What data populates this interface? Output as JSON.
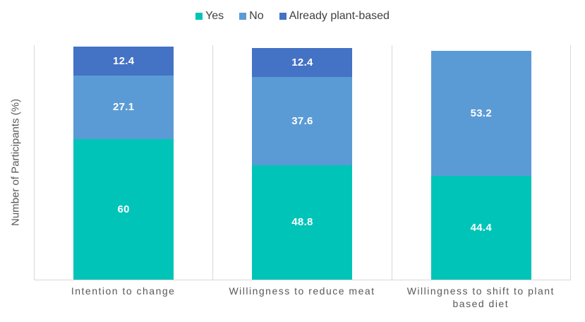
{
  "chart_data": {
    "type": "bar",
    "stacked": true,
    "title": "",
    "xlabel": "",
    "ylabel": "Number of Participants (%)",
    "categories": [
      "Intention to change",
      "Willingness to reduce meat",
      "Willingness to shift to plant based diet"
    ],
    "series": [
      {
        "name": "Yes",
        "color": "#00C4B8",
        "values": [
          60,
          48.8,
          44.4
        ]
      },
      {
        "name": "No",
        "color": "#5B9BD5",
        "values": [
          27.1,
          37.6,
          53.2
        ]
      },
      {
        "name": "Already plant-based",
        "color": "#4472C4",
        "values": [
          12.4,
          12.4,
          null
        ]
      }
    ],
    "ylim": [
      0,
      100
    ],
    "y_ticks_visible": false,
    "legend_position": "top",
    "data_labels": "inside-center",
    "panel_dividers": true
  },
  "styles": {
    "axis_line_color": "#D8D8D8",
    "tick_label_color": "#595959",
    "legend_text_color": "#404040",
    "data_label_color": "#FFFFFF",
    "background_color": "#FFFFFF"
  }
}
